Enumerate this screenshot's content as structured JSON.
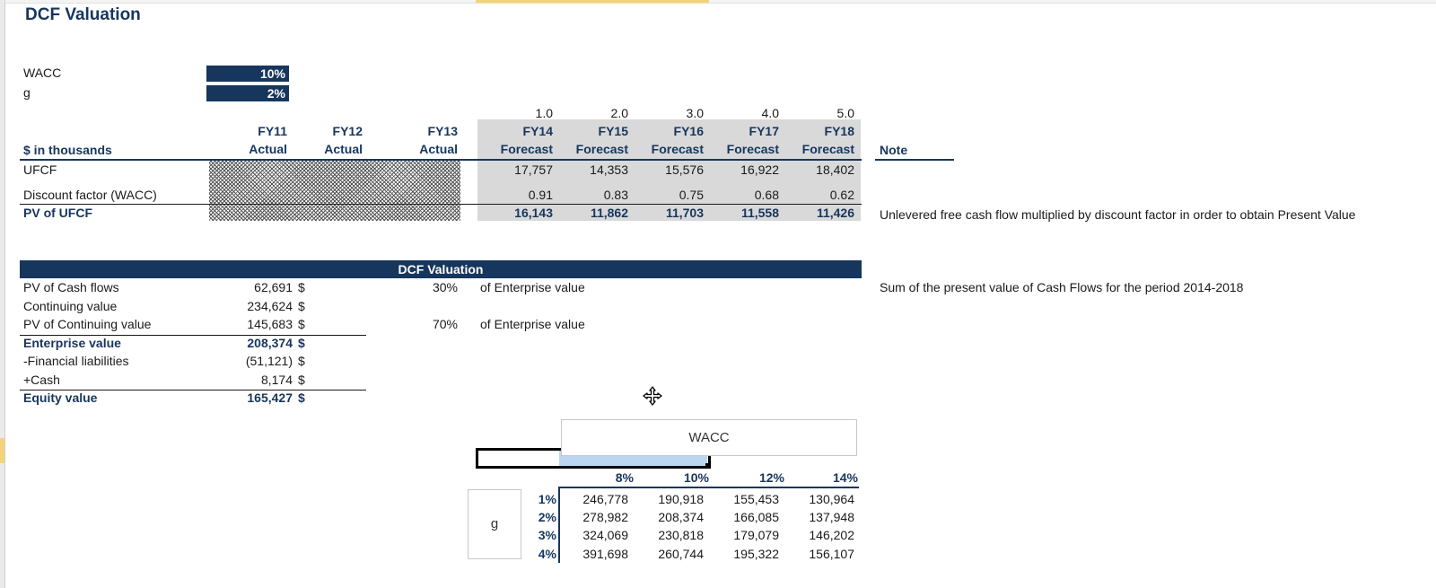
{
  "sheet": {
    "title": "DCF Valuation",
    "inputs": [
      {
        "label": "WACC",
        "value": "10%"
      },
      {
        "label": "g",
        "value": "2%"
      }
    ]
  },
  "cashflow_table": {
    "unit_label": "$ in thousands",
    "note_header": "Note",
    "period_numbers": [
      "1.0",
      "2.0",
      "3.0",
      "4.0",
      "5.0"
    ],
    "years": [
      "FY11",
      "FY12",
      "FY13",
      "FY14",
      "FY15",
      "FY16",
      "FY17",
      "FY18"
    ],
    "types": [
      "Actual",
      "Actual",
      "Actual",
      "Forecast",
      "Forecast",
      "Forecast",
      "Forecast",
      "Forecast"
    ],
    "rows": [
      {
        "label": "UFCF",
        "values": [
          "17,757",
          "14,353",
          "15,576",
          "16,922",
          "18,402"
        ],
        "note": ""
      },
      {
        "label": "Discount factor (WACC)",
        "values": [
          "0.91",
          "0.83",
          "0.75",
          "0.68",
          "0.62"
        ],
        "note": ""
      },
      {
        "label": "PV of UFCF",
        "values": [
          "16,143",
          "11,862",
          "11,703",
          "11,558",
          "11,426"
        ],
        "note": "Unlevered free cash flow multiplied by discount factor in order to obtain Present Value"
      }
    ]
  },
  "valuation": {
    "band_title": "DCF Valuation",
    "rows": [
      {
        "label": "PV of Cash flows",
        "value": "62,691",
        "currency": "$",
        "pct": "30%",
        "pct_label": "of Enterprise value",
        "note": "Sum of the present value of Cash Flows for the period 2014-2018"
      },
      {
        "label": "Continuing value",
        "value": "234,624",
        "currency": "$",
        "pct": "",
        "pct_label": "",
        "note": ""
      },
      {
        "label": "PV of Continuing value",
        "value": "145,683",
        "currency": "$",
        "pct": "70%",
        "pct_label": "of Enterprise value",
        "note": ""
      },
      {
        "label": "Enterprise value",
        "value": "208,374",
        "currency": "$",
        "pct": "",
        "pct_label": "",
        "note": ""
      },
      {
        "label": "-Financial liabilities",
        "value": "(51,121)",
        "currency": "$",
        "pct": "",
        "pct_label": "",
        "note": ""
      },
      {
        "label": "+Cash",
        "value": "8,174",
        "currency": "$",
        "pct": "",
        "pct_label": "",
        "note": ""
      },
      {
        "label": "Equity value",
        "value": "165,427",
        "currency": "$",
        "pct": "",
        "pct_label": "",
        "note": ""
      }
    ]
  },
  "sensitivity": {
    "wacc_title": "WACC",
    "g_title": "g",
    "wacc_values": [
      "8%",
      "10%",
      "12%",
      "14%"
    ],
    "g_values": [
      "1%",
      "2%",
      "3%",
      "4%"
    ],
    "matrix": [
      [
        "246,778",
        "190,918",
        "155,453",
        "130,964"
      ],
      [
        "278,982",
        "208,374",
        "166,085",
        "137,948"
      ],
      [
        "324,069",
        "230,818",
        "179,079",
        "146,202"
      ],
      [
        "391,698",
        "260,744",
        "195,322",
        "156,107"
      ]
    ]
  },
  "cursor": {
    "icon": "move-cursor-icon"
  },
  "colors": {
    "navy": "#17365d",
    "grey_fill": "#d9d9d9",
    "selection_fill": "#bcd6f2"
  }
}
